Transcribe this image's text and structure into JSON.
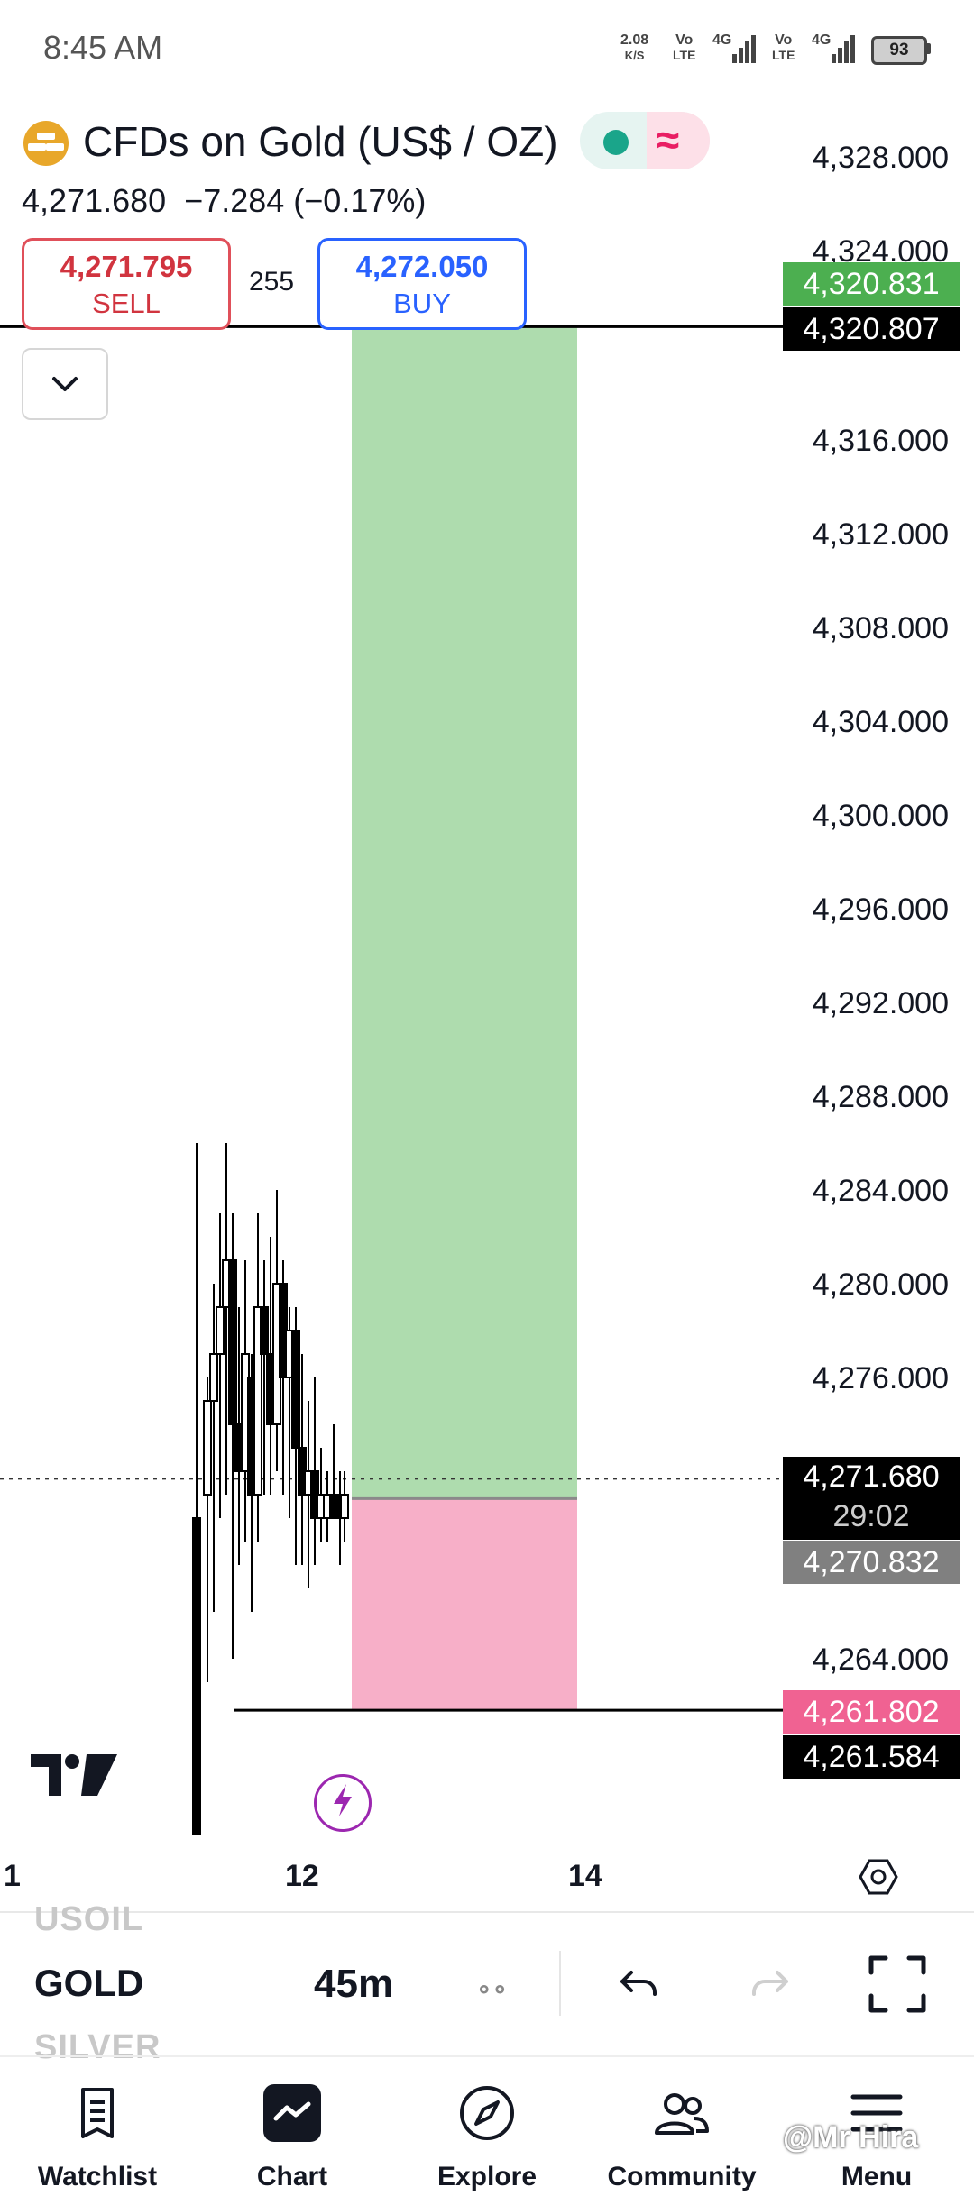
{
  "status_bar": {
    "time": "8:45 AM",
    "net_speed_value": "2.08",
    "net_speed_unit": "K/S",
    "volte1_top": "Vo",
    "volte1_bottom": "LTE",
    "net1": "4G",
    "volte2_top": "Vo",
    "volte2_bottom": "LTE",
    "net2": "4G",
    "battery": "93"
  },
  "header": {
    "title": "CFDs on Gold (US$ / OZ)",
    "last_price": "4,271.680",
    "change": "−7.284 (−0.17%)",
    "sell_price": "4,271.795",
    "sell_label": "SELL",
    "spread": "255",
    "buy_price": "4,272.050",
    "buy_label": "BUY",
    "pill_colors": {
      "market_open": "#1aa58a",
      "wave": "#e91e63"
    },
    "wave_glyph": "≈",
    "collapse_glyph": "⌄"
  },
  "price_axis": {
    "ticks": [
      "4,328.000",
      "4,324.000",
      "4,316.000",
      "4,312.000",
      "4,308.000",
      "4,304.000",
      "4,300.000",
      "4,296.000",
      "4,292.000",
      "4,288.000",
      "4,284.000",
      "4,280.000",
      "4,276.000",
      "4,264.000"
    ],
    "badges": {
      "target": "4,320.831",
      "target_line": "4,320.807",
      "current": "4,271.680",
      "countdown": "29:02",
      "entry": "4,270.832",
      "stop": "4,261.802",
      "stop_line": "4,261.584"
    },
    "colors": {
      "profit": "#4caf50",
      "loss": "#f06292",
      "entry": "#808080",
      "line": "#000000"
    }
  },
  "chart_data": {
    "type": "candlestick",
    "price_range": [
      4258,
      4332
    ],
    "position_tool": {
      "entry": 4270.832,
      "target": 4320.831,
      "stop": 4261.802,
      "profit_color": "#aedcae",
      "loss_color": "#f7afc8"
    },
    "current_price": 4271.68,
    "x_ticks": [
      "1",
      "12",
      "14"
    ]
  },
  "time_axis": {
    "labels": [
      "1",
      "12",
      "14"
    ]
  },
  "toolbar": {
    "symbol_above": "USOIL",
    "symbol_current": "GOLD",
    "symbol_below": "SILVER",
    "interval": "45m",
    "indicators_glyph": "∘∘"
  },
  "nav": {
    "items": [
      {
        "label": "Watchlist",
        "icon": "watchlist-icon"
      },
      {
        "label": "Chart",
        "icon": "chart-icon"
      },
      {
        "label": "Explore",
        "icon": "compass-icon"
      },
      {
        "label": "Community",
        "icon": "community-icon"
      },
      {
        "label": "Menu",
        "icon": "menu-icon"
      }
    ]
  },
  "watermark": "@Mr Hira"
}
